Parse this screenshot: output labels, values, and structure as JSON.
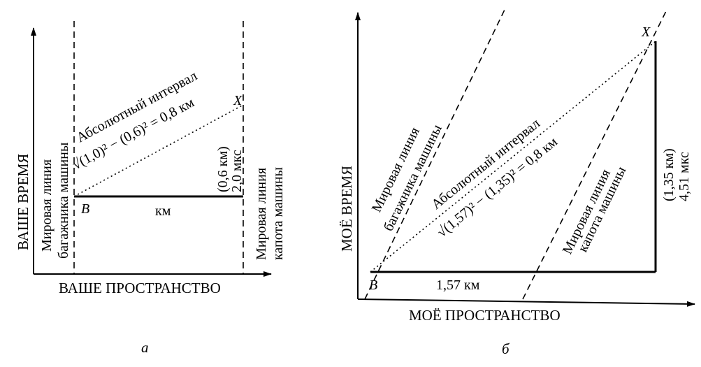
{
  "left": {
    "y_axis_label": "ВАШЕ ВРЕМЯ",
    "x_axis_label": "ВАШЕ ПРОСТРАНСТВО",
    "trunk_line_label": [
      "Мировая линия",
      "багажника машины"
    ],
    "hood_line_label": [
      "Мировая линия",
      "капота машины"
    ],
    "interval_label": "Абсолютный интервал",
    "interval_formula": "√(1,0)² − (0,6)² = 0,8 км",
    "point_b": "B",
    "point_x": "X",
    "base_label": "км",
    "vertical_label": [
      "(0,6 км)",
      "2,0 мкс"
    ],
    "caption": "а"
  },
  "right": {
    "y_axis_label": "МОЁ ВРЕМЯ",
    "x_axis_label": "МОЁ ПРОСТРАНСТВО",
    "trunk_line_label": [
      "Мировая линия",
      "багажника машины"
    ],
    "hood_line_label": [
      "Мировая линия",
      "капота машины"
    ],
    "interval_label": "Абсолютный интервал",
    "interval_formula": "√(1,57)² − (1,35)² = 0,8 км",
    "point_b": "B",
    "point_x": "X",
    "base_label": "1,57 км",
    "vertical_label": [
      "(1,35 км)",
      "4,51 мкс"
    ],
    "caption": "б"
  }
}
